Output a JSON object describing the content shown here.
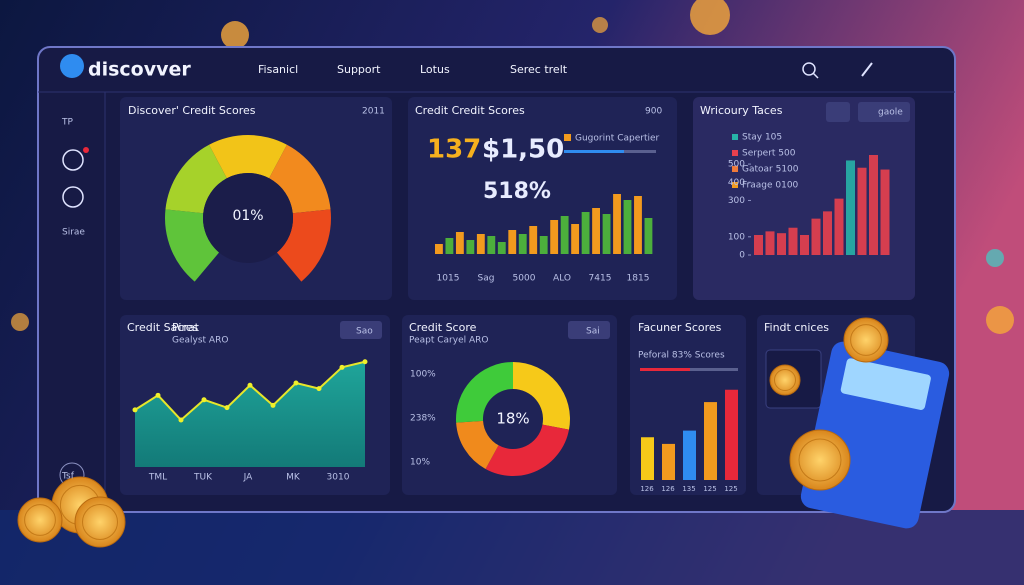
{
  "header": {
    "logo": "discovver",
    "nav": [
      "Fisanicl",
      "Support",
      "Lotus",
      "Serec trelt"
    ]
  },
  "sidebar": [
    "TP",
    "Sirae",
    "Tsf"
  ],
  "gauge_panel": {
    "title": "Discover' Credit Scores",
    "badge": "2011",
    "center": "01%"
  },
  "bars_panel": {
    "title": "Credit Credit Scores",
    "badge": "900",
    "stat_a": "137",
    "stat_b": "$1,50",
    "legend": "Gugorint Capertier",
    "stat_c": "518%",
    "x_labels": [
      "1015",
      "Sag",
      "5000",
      "ALO",
      "7415",
      "1815"
    ],
    "values": [
      10,
      16,
      22,
      14,
      20,
      18,
      12,
      24,
      20,
      28,
      18,
      34,
      38,
      30,
      42,
      46,
      40,
      60,
      54,
      58,
      36
    ],
    "colors": [
      "#f29a1e",
      "#4caf3c",
      "#f29a1e",
      "#4caf3c",
      "#f29a1e",
      "#4caf3c",
      "#4caf3c",
      "#f29a1e",
      "#4caf3c",
      "#f29a1e",
      "#4caf3c",
      "#f29a1e",
      "#4caf3c",
      "#f29a1e",
      "#4caf3c",
      "#f29a1e",
      "#4caf3c",
      "#f29a1e",
      "#4caf3c",
      "#f29a1e",
      "#4caf3c"
    ],
    "ylim": [
      0,
      70
    ]
  },
  "trend_panel": {
    "title": "Wricoury Taces",
    "button": "gaole",
    "legend": [
      {
        "label": "Stay 105",
        "color": "#27b3a8"
      },
      {
        "label": "Serpert 500",
        "color": "#e8404e"
      },
      {
        "label": "Gatoar 5100",
        "color": "#f07a3a"
      },
      {
        "label": "Fraage 0100",
        "color": "#f29a1e"
      }
    ],
    "yticks": [
      0,
      100,
      300,
      400,
      500
    ],
    "ylim": [
      0,
      550
    ],
    "values": [
      110,
      130,
      120,
      150,
      110,
      200,
      240,
      310,
      520,
      480,
      550,
      470
    ],
    "colors": [
      "#e8404e",
      "#e8404e",
      "#e8404e",
      "#e8404e",
      "#e8404e",
      "#e8404e",
      "#e8404e",
      "#e8404e",
      "#27b3a8",
      "#e8404e",
      "#e8404e",
      "#e8404e"
    ]
  },
  "area_panel": {
    "title": "Credit Sacrat",
    "title2": "Pires",
    "subtitle": "Gealyst ARO",
    "button": "Sao",
    "x_labels": [
      "TML",
      "TUK",
      "JA",
      "MK",
      "3010"
    ],
    "values": [
      51,
      64,
      42,
      60,
      53,
      73,
      55,
      75,
      70,
      89,
      94
    ],
    "ylim": [
      0,
      100
    ]
  },
  "donut_panel": {
    "title": "Credit Score",
    "subtitle": "Peapt Caryel ARO",
    "button": "Sai",
    "labels": [
      "100%",
      "238%",
      "10%"
    ],
    "center": "18%",
    "segments": [
      {
        "value": 28,
        "color": "#f6c919"
      },
      {
        "value": 30,
        "color": "#e8283a"
      },
      {
        "value": 16,
        "color": "#f08a1c"
      },
      {
        "value": 26,
        "color": "#3fcb3a"
      }
    ]
  },
  "score_panel": {
    "title": "Facuner Scores",
    "subtitle": "Peforal 83% Scores",
    "x_labels": [
      "126",
      "126",
      "135",
      "125",
      "125"
    ],
    "values": [
      45,
      38,
      52,
      82,
      95
    ],
    "colors": [
      "#f6c919",
      "#f29a1e",
      "#2f8cf0",
      "#f29a1e",
      "#e8283a"
    ],
    "ylim": [
      0,
      100
    ]
  },
  "prices_panel": {
    "title": "Findt cnices"
  }
}
